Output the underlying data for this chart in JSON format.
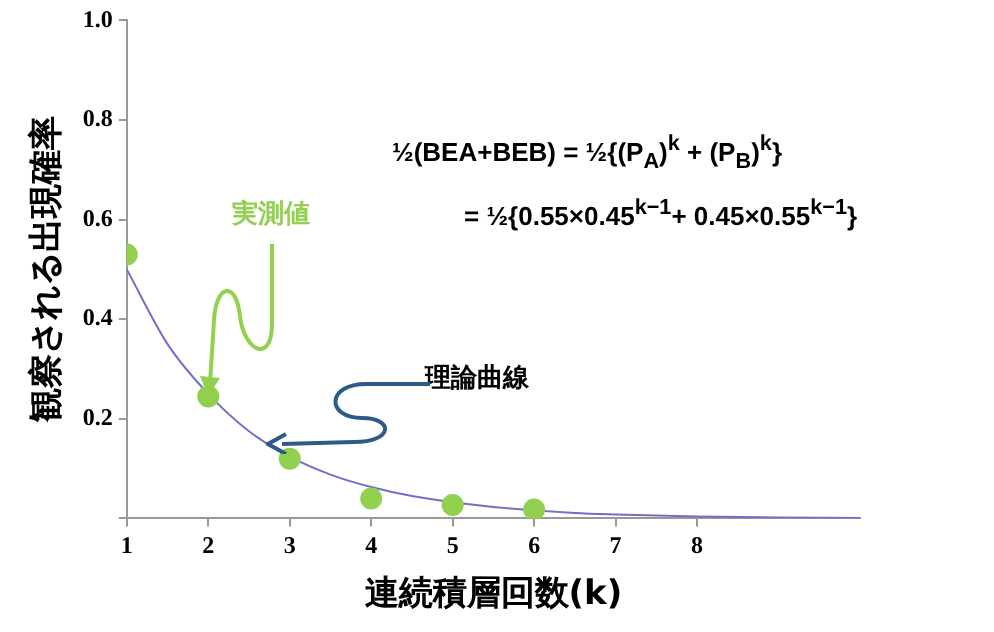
{
  "chart_data": {
    "type": "scatter",
    "xlabel": "連続積層回数(k)",
    "ylabel": "観察される出現確率",
    "xlim": [
      1,
      10
    ],
    "xticks": [
      1,
      2,
      3,
      4,
      5,
      6,
      7,
      8
    ],
    "ylim": [
      0,
      1
    ],
    "yticks": [
      {
        "value": 0,
        "label": null
      },
      0.2,
      0.4,
      0.6,
      0.8,
      {
        "value": 1,
        "label": "1.0"
      }
    ],
    "grid": false,
    "legend": false,
    "series": [
      {
        "type": "scatter",
        "marker": "circle",
        "color": "#92d050",
        "x": [
          1,
          2,
          3,
          4,
          5,
          6
        ],
        "values": [
          0.53,
          0.245,
          0.12,
          0.04,
          0.027,
          0.018
        ]
      },
      {
        "type": "line",
        "marker": "none",
        "color": "#7070c8",
        "x": [
          1,
          1.5,
          2,
          2.5,
          3,
          3.5,
          4,
          4.5,
          5.5,
          6.5,
          7,
          8,
          9,
          10
        ],
        "values": [
          0.5,
          0.35,
          0.25,
          0.175,
          0.124,
          0.088,
          0.063,
          0.045,
          0.023,
          0.011,
          0.008,
          0.004,
          0.002,
          0.001
        ]
      }
    ],
    "annotations": [
      "½(BEA+BEB) = ½{(P$_{A}$)$^{k}$ + (P$_{B}$)$^{k}$}",
      "= ½{0.55×0.45$^{k−1}$+ 0.45×0.55$^{k−1}$}",
      {
        "text": "実測値",
        "x": 2,
        "y": 0.245
      },
      {
        "text": "理論曲線",
        "x": 2.75,
        "y": 0.15
      }
    ]
  }
}
